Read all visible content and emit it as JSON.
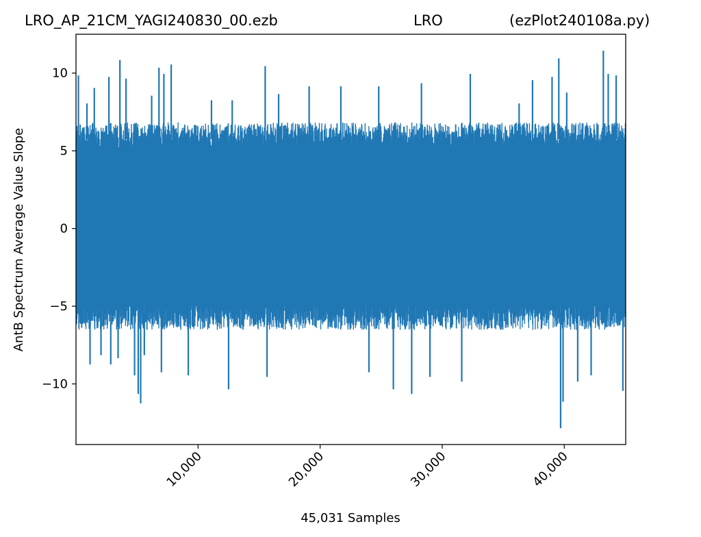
{
  "chart_data": {
    "type": "line",
    "title_parts": [
      "LRO_AP_21CM_YAGI240830_00.ezb",
      "LRO",
      "(ezPlot240108a.py)"
    ],
    "xlabel": "45,031 Samples",
    "ylabel": "AntB Spectrum Average Value Slope",
    "xlim": [
      1,
      45031
    ],
    "ylim": [
      -13.9,
      12.5
    ],
    "x_ticks": [
      10000,
      20000,
      30000,
      40000
    ],
    "x_tick_labels": [
      "10,000",
      "20,000",
      "30,000",
      "40,000"
    ],
    "y_ticks": [
      -10,
      -5,
      0,
      5,
      10
    ],
    "y_tick_labels": [
      "−10",
      "−5",
      "0",
      "5",
      "10"
    ],
    "grid": false,
    "series": [
      {
        "color": "#1f77b4",
        "n_samples": 45031,
        "typical_envelope": [
          -6.5,
          6.8
        ],
        "spikes": [
          {
            "x": 200,
            "y": 9.8
          },
          {
            "x": 900,
            "y": 8.0
          },
          {
            "x": 1150,
            "y": -8.7
          },
          {
            "x": 1500,
            "y": 9.0
          },
          {
            "x": 2050,
            "y": -8.1
          },
          {
            "x": 2700,
            "y": 9.7
          },
          {
            "x": 2850,
            "y": -8.7
          },
          {
            "x": 3450,
            "y": -8.3
          },
          {
            "x": 3600,
            "y": 10.8
          },
          {
            "x": 4100,
            "y": 9.6
          },
          {
            "x": 4800,
            "y": -9.4
          },
          {
            "x": 5100,
            "y": -10.6
          },
          {
            "x": 5300,
            "y": -11.2
          },
          {
            "x": 5600,
            "y": -8.1
          },
          {
            "x": 6200,
            "y": 8.5
          },
          {
            "x": 6800,
            "y": 10.3
          },
          {
            "x": 7000,
            "y": -9.2
          },
          {
            "x": 7200,
            "y": 9.9
          },
          {
            "x": 7800,
            "y": 10.5
          },
          {
            "x": 9200,
            "y": -9.4
          },
          {
            "x": 11100,
            "y": 8.2
          },
          {
            "x": 12500,
            "y": -10.3
          },
          {
            "x": 12800,
            "y": 8.2
          },
          {
            "x": 15500,
            "y": 10.4
          },
          {
            "x": 15650,
            "y": -9.5
          },
          {
            "x": 16600,
            "y": 8.6
          },
          {
            "x": 19100,
            "y": 9.1
          },
          {
            "x": 21700,
            "y": 9.1
          },
          {
            "x": 24000,
            "y": -9.2
          },
          {
            "x": 24800,
            "y": 9.1
          },
          {
            "x": 26000,
            "y": -10.3
          },
          {
            "x": 27500,
            "y": -10.6
          },
          {
            "x": 28300,
            "y": 9.3
          },
          {
            "x": 29000,
            "y": -9.5
          },
          {
            "x": 31600,
            "y": -9.8
          },
          {
            "x": 32300,
            "y": 9.9
          },
          {
            "x": 36300,
            "y": 8.0
          },
          {
            "x": 37400,
            "y": 9.5
          },
          {
            "x": 39000,
            "y": 9.7
          },
          {
            "x": 39550,
            "y": 10.9
          },
          {
            "x": 39700,
            "y": -12.8
          },
          {
            "x": 39900,
            "y": -11.1
          },
          {
            "x": 40200,
            "y": 8.7
          },
          {
            "x": 41100,
            "y": -9.8
          },
          {
            "x": 42200,
            "y": -9.4
          },
          {
            "x": 43200,
            "y": 11.4
          },
          {
            "x": 43600,
            "y": 9.9
          },
          {
            "x": 44250,
            "y": 9.8
          },
          {
            "x": 44800,
            "y": -10.4
          }
        ]
      }
    ]
  }
}
